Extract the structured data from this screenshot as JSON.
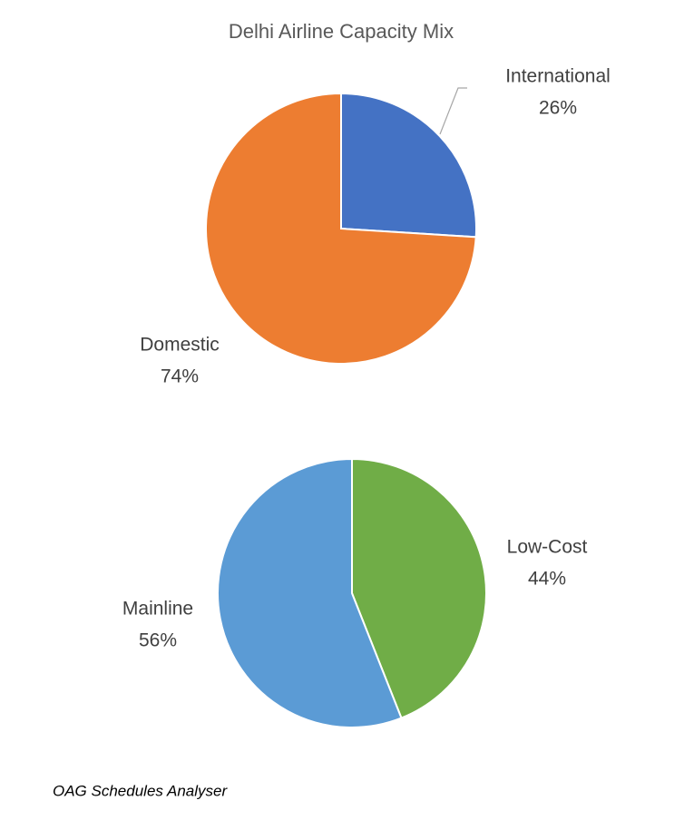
{
  "chart_data": [
    {
      "type": "pie",
      "title": "Delhi Airline Capacity Mix",
      "categories": [
        "International",
        "Domestic"
      ],
      "values": [
        26,
        74
      ],
      "value_labels": [
        "26%",
        "74%"
      ],
      "colors": [
        "#4472c4",
        "#ed7d31"
      ]
    },
    {
      "type": "pie",
      "categories": [
        "Low-Cost",
        "Mainline"
      ],
      "values": [
        44,
        56
      ],
      "value_labels": [
        "44%",
        "56%"
      ],
      "colors": [
        "#70ad47",
        "#5b9bd5"
      ]
    }
  ],
  "source": "OAG Schedules Analyser"
}
